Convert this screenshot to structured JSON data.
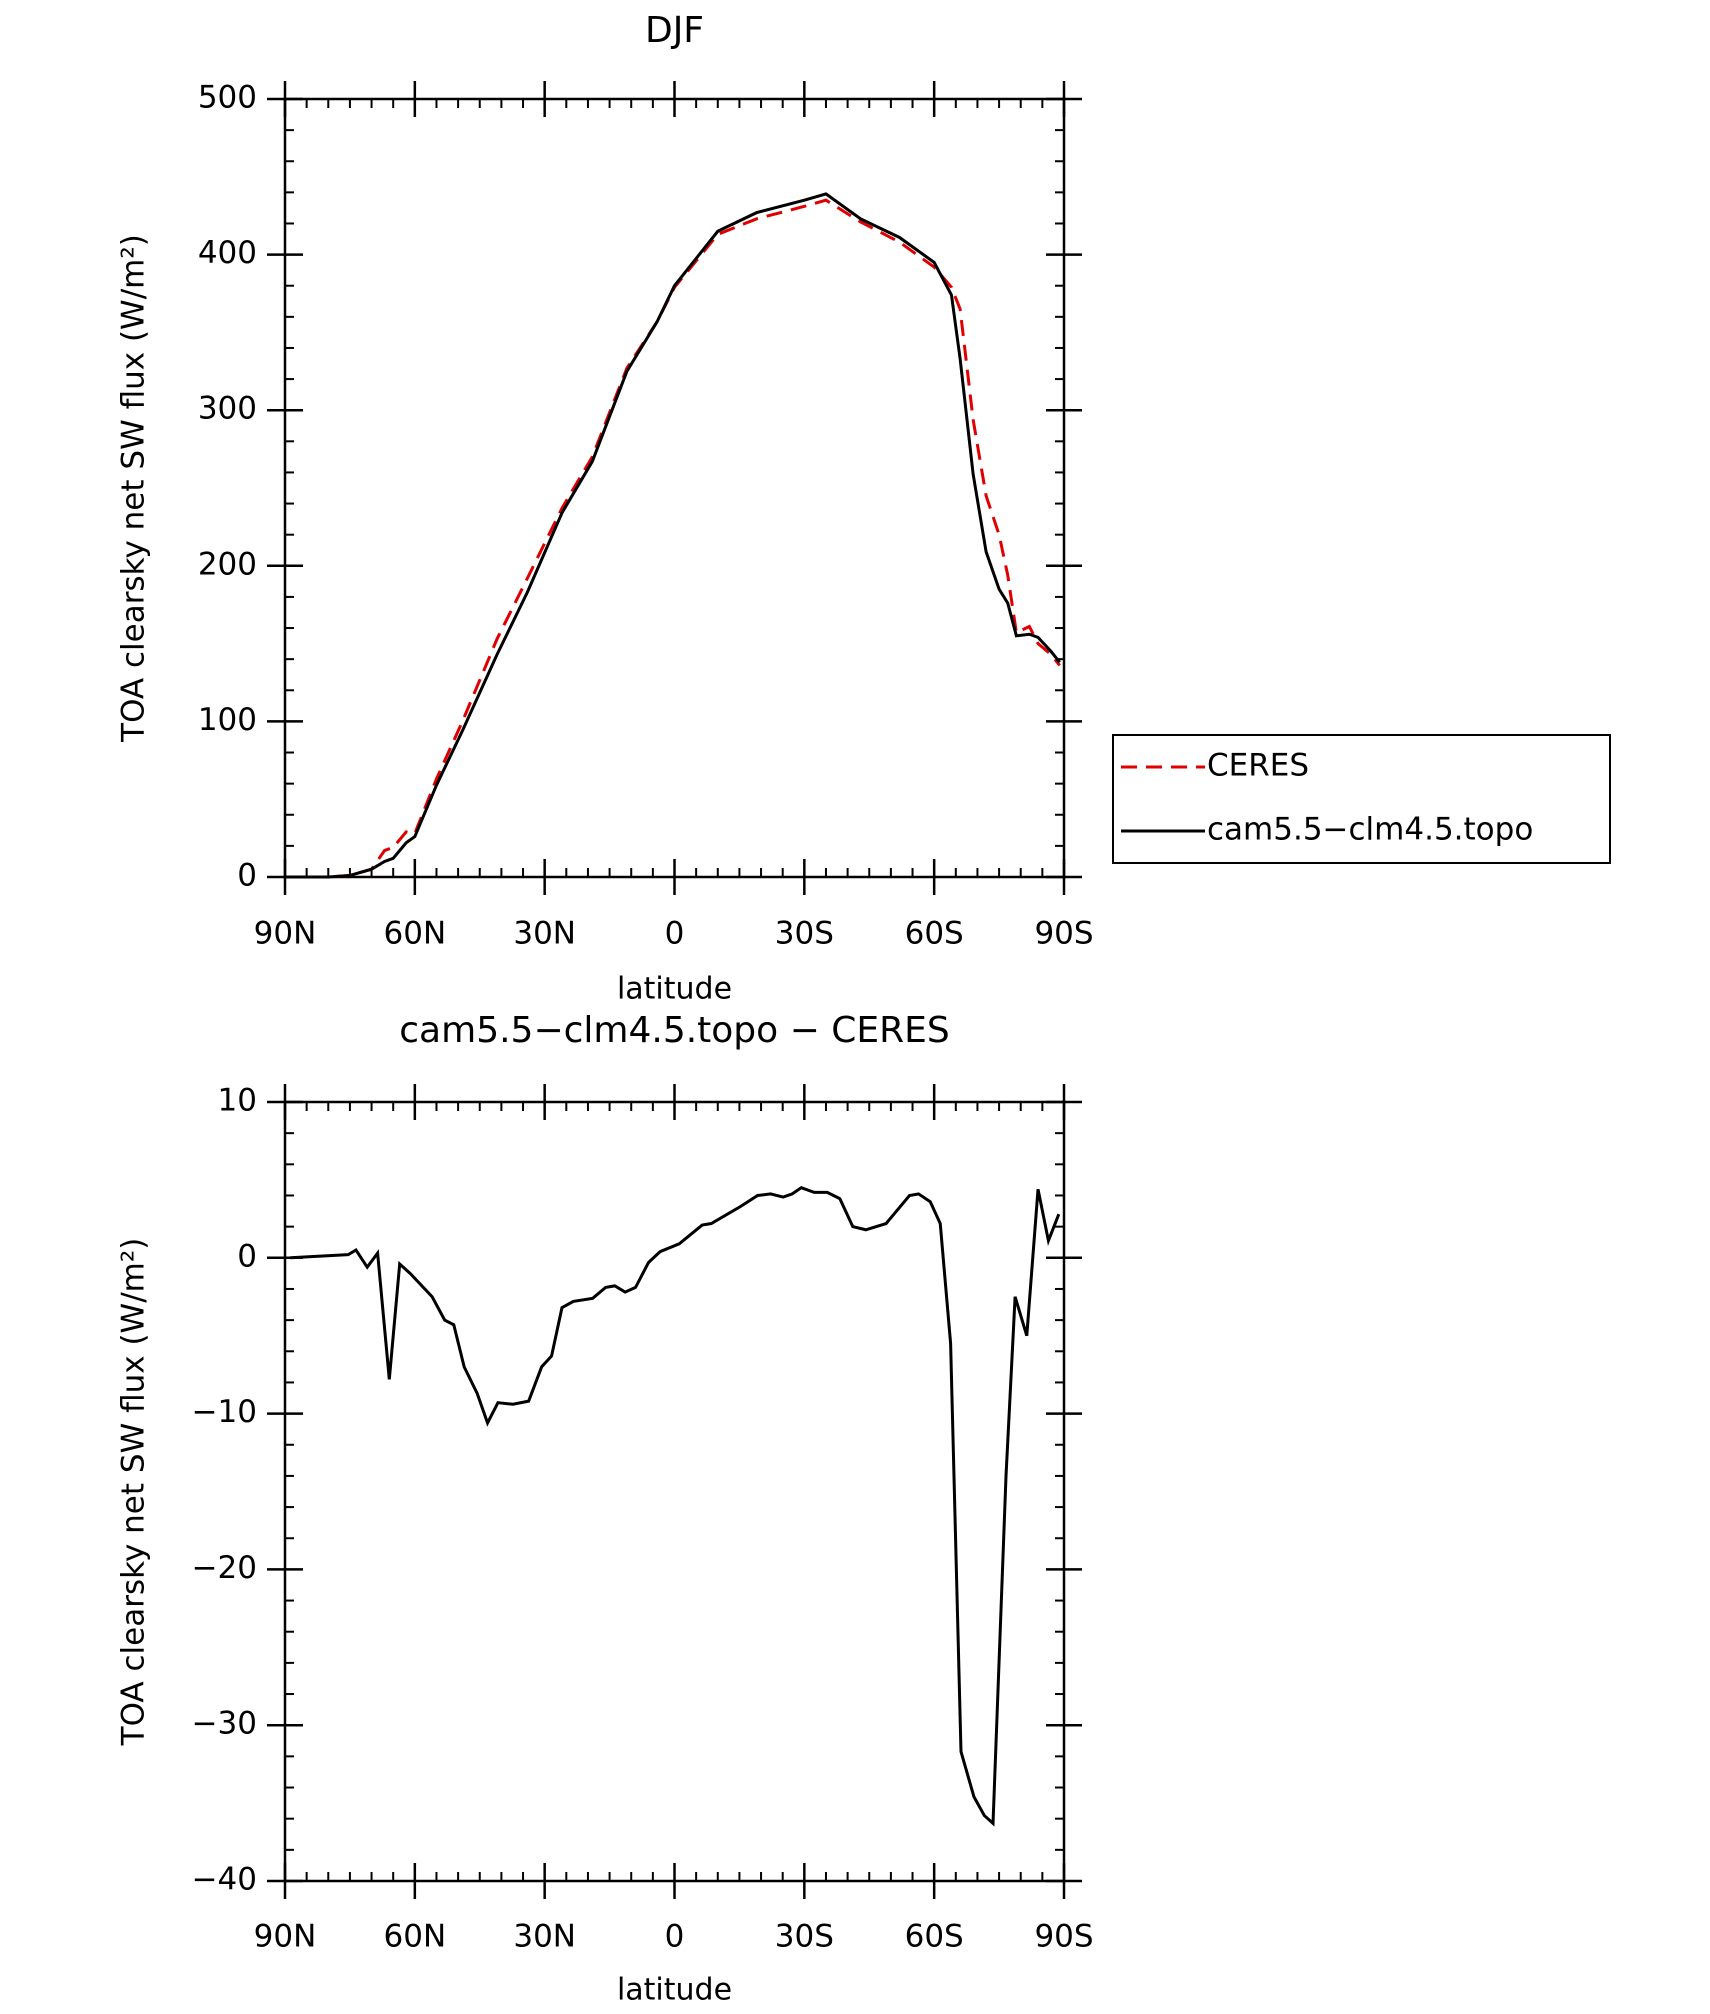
{
  "chart_data": [
    {
      "type": "line",
      "title": "DJF",
      "xlabel": "latitude",
      "ylabel": "TOA clearsky net SW flux (W/m²)",
      "xlim": [
        90,
        -90
      ],
      "ylim": [
        0,
        500
      ],
      "xticks": [
        {
          "value": 90,
          "label": "90N"
        },
        {
          "value": 60,
          "label": "60N"
        },
        {
          "value": 30,
          "label": "30N"
        },
        0,
        {
          "value": -30,
          "label": "30S"
        },
        {
          "value": -60,
          "label": "60S"
        },
        {
          "value": -90,
          "label": "90S"
        }
      ],
      "yticks": [
        0,
        100,
        200,
        300,
        400,
        500
      ],
      "legend": "right",
      "x": [
        90,
        80,
        75,
        70,
        67,
        65,
        62,
        60,
        55,
        49,
        41,
        34,
        26,
        19,
        11,
        4,
        0,
        -10,
        -19,
        -30,
        -35,
        -43,
        -52,
        -60,
        -64,
        -66,
        -69,
        -72,
        -75,
        -77,
        -79,
        -82,
        -84,
        -87,
        -89
      ],
      "series": [
        {
          "name": "CERES",
          "color": "#e00000",
          "line_style": "dashed",
          "values": [
            0,
            0,
            1,
            5,
            17,
            19,
            29,
            28,
            63,
            100,
            153,
            192,
            237,
            270,
            327,
            357,
            379,
            413,
            423,
            431,
            435,
            421,
            408,
            392,
            379,
            365,
            294,
            245,
            220,
            194,
            157,
            161,
            150,
            143,
            136
          ]
        },
        {
          "name": "cam5.5−clm4.5.topo",
          "color": "#000000",
          "line_style": "solid",
          "values": [
            0,
            0,
            1,
            5,
            10,
            12,
            22,
            26,
            59,
            94,
            143,
            183,
            234,
            267,
            325,
            357,
            380,
            415,
            427,
            435,
            439,
            423,
            411,
            395,
            374,
            333,
            259,
            209,
            185,
            176,
            155,
            156,
            154,
            145,
            138
          ]
        }
      ]
    },
    {
      "type": "line",
      "title": "cam5.5−clm4.5.topo − CERES",
      "xlabel": "latitude",
      "ylabel": "TOA clearsky net SW flux (W/m²)",
      "xlim": [
        90,
        -90
      ],
      "ylim": [
        -40,
        10
      ],
      "xticks": [
        {
          "value": 90,
          "label": "90N"
        },
        {
          "value": 60,
          "label": "60N"
        },
        {
          "value": 30,
          "label": "30N"
        },
        0,
        {
          "value": -30,
          "label": "30S"
        },
        {
          "value": -60,
          "label": "60S"
        },
        {
          "value": -90,
          "label": "90S"
        }
      ],
      "yticks": [
        {
          "value": -40,
          "label": "−40"
        },
        {
          "value": -30,
          "label": "−30"
        },
        {
          "value": -20,
          "label": "−20"
        },
        {
          "value": -10,
          "label": "−10"
        },
        0,
        10
      ],
      "x": [
        88.8,
        75.4,
        73.6,
        71,
        68.6,
        65.9,
        63.5,
        61.1,
        56,
        53.1,
        51,
        48.6,
        45.6,
        43.2,
        40.8,
        37.3,
        33.7,
        30.7,
        28.4,
        26,
        23.4,
        18.9,
        15.9,
        13.8,
        11.4,
        9,
        6,
        3.3,
        -1.1,
        -6.4,
        -8.5,
        -15.3,
        -19.2,
        -22.2,
        -25.1,
        -27.2,
        -29.3,
        -32.3,
        -35.3,
        -38.2,
        -41.2,
        -44.2,
        -48.9,
        -54.3,
        -56.4,
        -59.1,
        -61.4,
        -63.8,
        -66.2,
        -69.2,
        -71.6,
        -73.6,
        -76.6,
        -78.7,
        -81.4,
        -84,
        -86.4,
        -88.8
      ],
      "series": [
        {
          "color": "#000000",
          "line_style": "solid",
          "values": [
            0,
            0.2,
            0.5,
            -0.6,
            0.3,
            -7.8,
            -0.4,
            -1,
            -2.5,
            -4,
            -4.3,
            -7,
            -8.7,
            -10.6,
            -9.3,
            -9.4,
            -9.2,
            -7,
            -6.3,
            -3.2,
            -2.8,
            -2.6,
            -1.9,
            -1.8,
            -2.2,
            -1.9,
            -0.3,
            0.4,
            0.9,
            2.1,
            2.2,
            3.3,
            4,
            4.1,
            3.9,
            4.1,
            4.5,
            4.2,
            4.2,
            3.8,
            2,
            1.8,
            2.2,
            4,
            4.1,
            3.6,
            2.2,
            -5.5,
            -31.7,
            -34.6,
            -35.8,
            -36.3,
            -14,
            -2.5,
            -5,
            4.4,
            1.1,
            2.8
          ]
        }
      ]
    }
  ]
}
